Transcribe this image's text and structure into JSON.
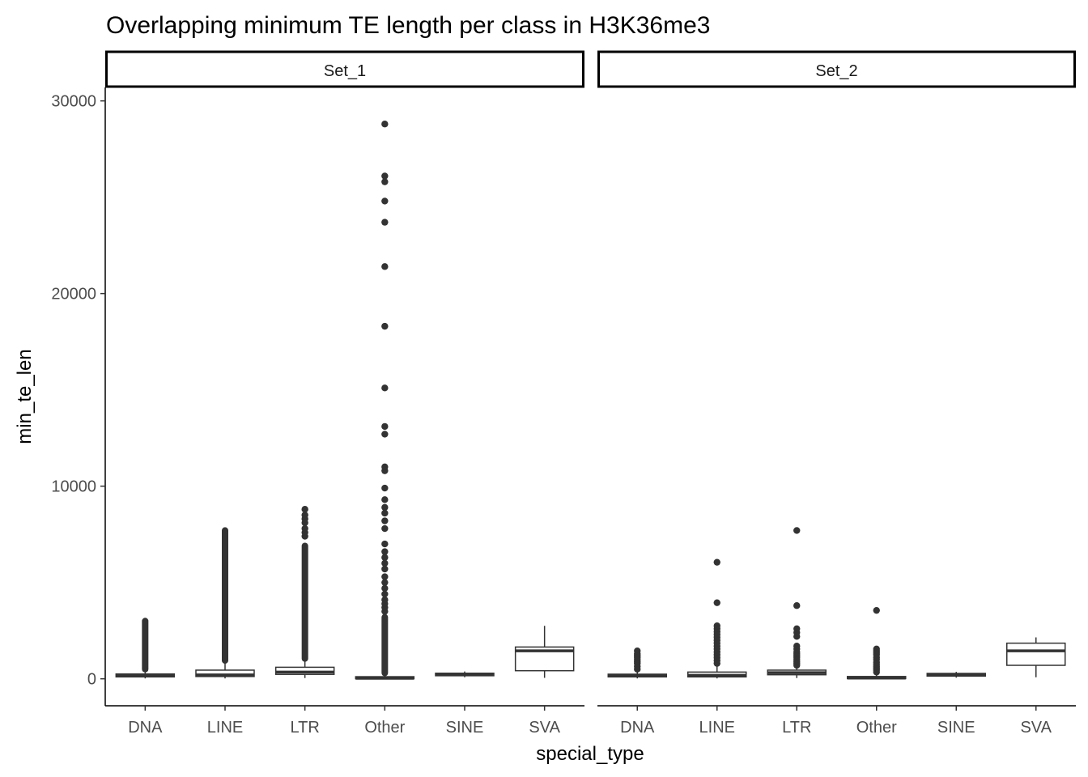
{
  "chart_data": {
    "type": "boxplot",
    "title": "Overlapping minimum TE length per class in H3K36me3",
    "xlabel": "special_type",
    "ylabel": "min_te_len",
    "ylim": [
      -1400,
      30700
    ],
    "yticks": [
      0,
      10000,
      20000,
      30000
    ],
    "categories": [
      "DNA",
      "LINE",
      "LTR",
      "Other",
      "SINE",
      "SVA"
    ],
    "facet_strip": "top",
    "grid": false,
    "color": "#333333",
    "facets": [
      {
        "name": "Set_1",
        "boxes": [
          {
            "category": "DNA",
            "whisker_low": 20,
            "q1": 100,
            "median": 160,
            "q3": 250,
            "whisker_high": 480,
            "outliers_dense": [
              500,
              3000
            ]
          },
          {
            "category": "LINE",
            "whisker_low": 20,
            "q1": 120,
            "median": 200,
            "q3": 450,
            "whisker_high": 900,
            "outliers_dense": [
              950,
              7700
            ]
          },
          {
            "category": "LTR",
            "whisker_low": 40,
            "q1": 230,
            "median": 350,
            "q3": 600,
            "whisker_high": 1000,
            "outliers_dense": [
              1050,
              6900
            ],
            "outliers": [
              7400,
              7600,
              7800,
              8100,
              8300,
              8500,
              8800
            ]
          },
          {
            "category": "Other",
            "whisker_low": 0,
            "q1": 10,
            "median": 30,
            "q3": 110,
            "whisker_high": 250,
            "outliers_dense": [
              300,
              3200
            ],
            "outliers": [
              3500,
              3700,
              3900,
              4100,
              4400,
              4700,
              5000,
              5300,
              5700,
              6000,
              6300,
              6600,
              7000,
              7800,
              8200,
              8600,
              8900,
              9300,
              9900,
              10800,
              11000,
              12700,
              13100,
              15100,
              18300,
              21400,
              23700,
              24800,
              25800,
              26100,
              28800
            ]
          },
          {
            "category": "SINE",
            "whisker_low": 80,
            "q1": 160,
            "median": 230,
            "q3": 290,
            "whisker_high": 380
          },
          {
            "category": "SVA",
            "whisker_low": 50,
            "q1": 420,
            "median": 1450,
            "q3": 1650,
            "whisker_high": 2750
          }
        ]
      },
      {
        "name": "Set_2",
        "boxes": [
          {
            "category": "DNA",
            "whisker_low": 20,
            "q1": 100,
            "median": 160,
            "q3": 240,
            "whisker_high": 400,
            "outliers": [
              500,
              650,
              800,
              900,
              1000,
              1100,
              1200,
              1300,
              1450
            ]
          },
          {
            "category": "LINE",
            "whisker_low": 20,
            "q1": 100,
            "median": 180,
            "q3": 350,
            "whisker_high": 700,
            "outliers": [
              800,
              950,
              1100,
              1250,
              1400,
              1550,
              1700,
              1850,
              2000,
              2150,
              2300,
              2450,
              2600,
              2750,
              3950,
              6050
            ]
          },
          {
            "category": "LTR",
            "whisker_low": 40,
            "q1": 210,
            "median": 320,
            "q3": 450,
            "whisker_high": 650,
            "outliers": [
              700,
              800,
              900,
              1000,
              1100,
              1200,
              1300,
              1400,
              1550,
              1700,
              2200,
              2400,
              2600,
              3800,
              7700
            ]
          },
          {
            "category": "Other",
            "whisker_low": 0,
            "q1": 10,
            "median": 40,
            "q3": 120,
            "whisker_high": 250,
            "outliers": [
              350,
              450,
              550,
              650,
              750,
              850,
              1000,
              1100,
              1250,
              1350,
              1450,
              1550,
              3550
            ]
          },
          {
            "category": "SINE",
            "whisker_low": 60,
            "q1": 140,
            "median": 210,
            "q3": 280,
            "whisker_high": 360
          },
          {
            "category": "SVA",
            "whisker_low": 80,
            "q1": 700,
            "median": 1450,
            "q3": 1850,
            "whisker_high": 2150
          }
        ]
      }
    ]
  }
}
